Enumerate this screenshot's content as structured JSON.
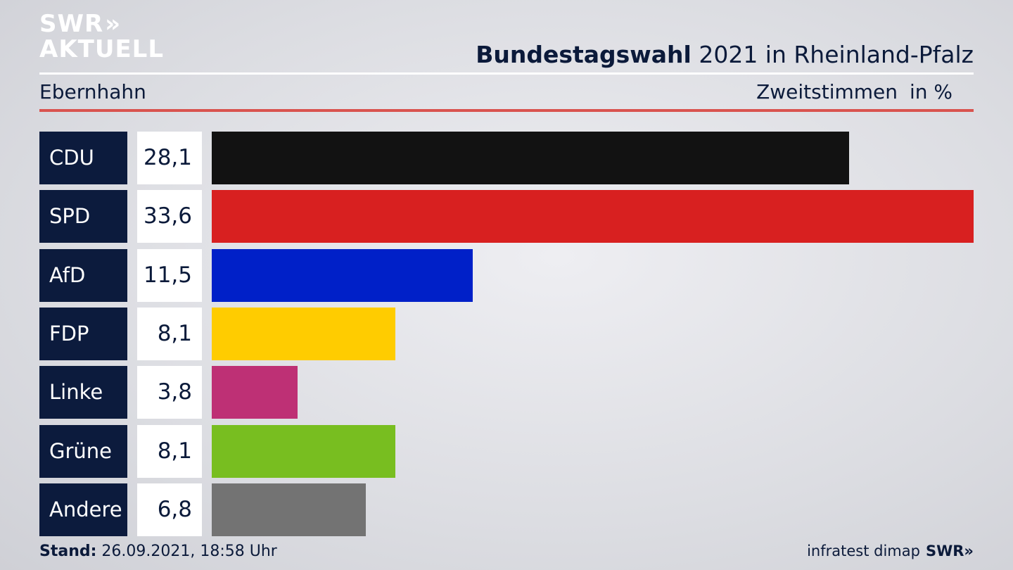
{
  "logo": {
    "line1": "SWR",
    "chevrons": "»",
    "line2": "AKTUELL"
  },
  "header": {
    "title_bold": "Bundestagswahl",
    "title_rest": " 2021 in Rheinland-Pfalz",
    "location": "Ebernhahn",
    "metric": "Zweitstimmen",
    "unit": "in %"
  },
  "chart_data": {
    "type": "bar",
    "orientation": "horizontal",
    "title": "Bundestagswahl 2021 in Rheinland-Pfalz",
    "subtitle": "Ebernhahn",
    "categories": [
      "CDU",
      "SPD",
      "AfD",
      "FDP",
      "Linke",
      "Grüne",
      "Andere"
    ],
    "labels": [
      "28,1",
      "33,6",
      "11,5",
      "8,1",
      "3,8",
      "8,1",
      "6,8"
    ],
    "values": [
      28.1,
      33.6,
      11.5,
      8.1,
      3.8,
      8.1,
      6.8
    ],
    "colors": [
      "#121212",
      "#d82020",
      "#0020c8",
      "#ffcc00",
      "#be3075",
      "#78be20",
      "#737373"
    ],
    "xlim": [
      0,
      33.6
    ],
    "grid": false
  },
  "footer": {
    "stand_label": "Stand:",
    "stand_value": " 26.09.2021, 18:58 Uhr",
    "source": "infratest dimap",
    "brand": "SWR»"
  }
}
